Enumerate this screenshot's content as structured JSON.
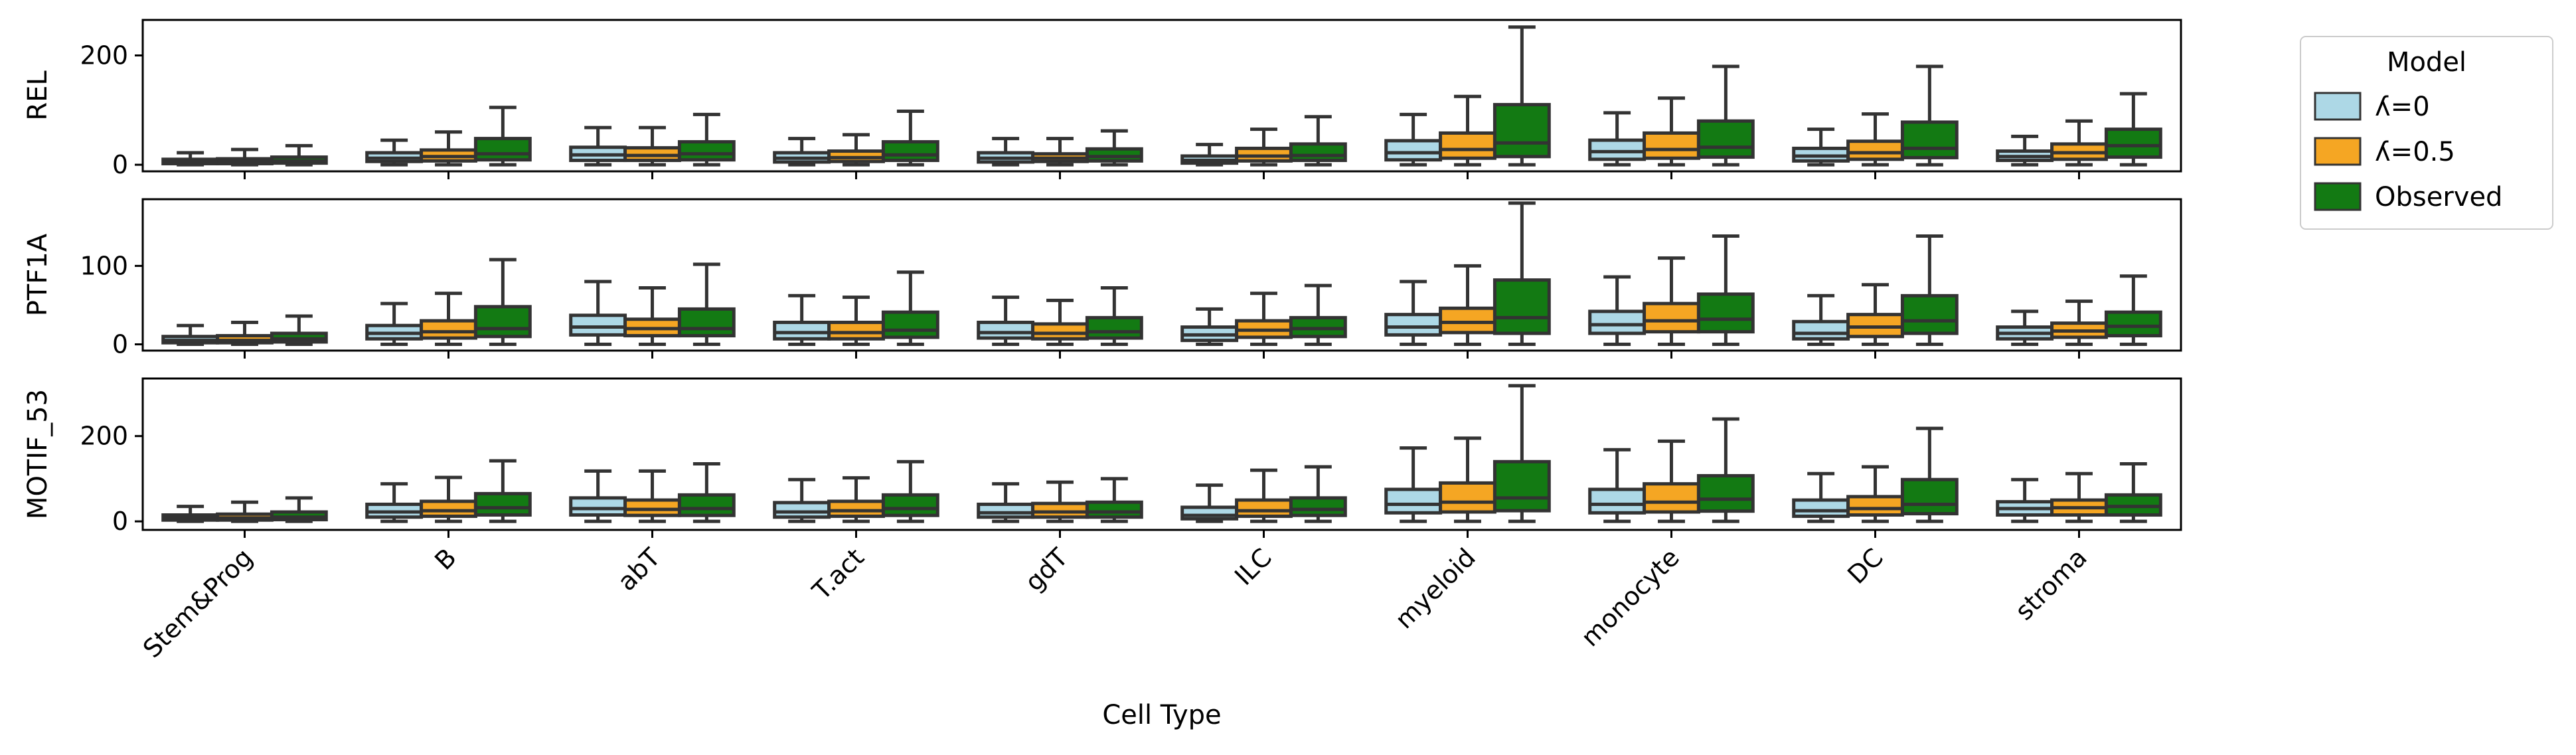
{
  "chart_data": {
    "type": "boxplot",
    "xlabel": "Cell Type",
    "categories": [
      "Stem&Prog",
      "B",
      "abT",
      "T.act",
      "gdT",
      "ILC",
      "myeloid",
      "monocyte",
      "DC",
      "stroma"
    ],
    "legend": {
      "title": "Model",
      "placement": "outside-right",
      "entries": [
        {
          "name": "ʎ=0",
          "color": "#add8e6"
        },
        {
          "name": "ʎ=0.5",
          "color": "#f5a623"
        },
        {
          "name": "Observed",
          "color": "#137a13"
        }
      ]
    },
    "panels": [
      {
        "ylabel": "REL",
        "ylim": [
          -12,
          265
        ],
        "yticks": [
          0,
          200
        ],
        "boxes": [
          [
            [
              0,
              2,
              5,
              10,
              22
            ],
            [
              0,
              2,
              6,
              11,
              28
            ],
            [
              0,
              3,
              7,
              14,
              35
            ]
          ],
          [
            [
              0,
              6,
              12,
              22,
              45
            ],
            [
              0,
              7,
              15,
              27,
              60
            ],
            [
              0,
              9,
              20,
              48,
              105
            ]
          ],
          [
            [
              0,
              8,
              18,
              32,
              68
            ],
            [
              0,
              8,
              17,
              31,
              68
            ],
            [
              0,
              9,
              20,
              42,
              92
            ]
          ],
          [
            [
              0,
              5,
              12,
              22,
              48
            ],
            [
              0,
              6,
              13,
              25,
              55
            ],
            [
              0,
              8,
              18,
              42,
              98
            ]
          ],
          [
            [
              0,
              5,
              12,
              22,
              48
            ],
            [
              0,
              6,
              12,
              20,
              48
            ],
            [
              0,
              7,
              15,
              29,
              62
            ]
          ],
          [
            [
              0,
              3,
              8,
              16,
              37
            ],
            [
              0,
              7,
              16,
              30,
              65
            ],
            [
              0,
              8,
              17,
              38,
              88
            ]
          ],
          [
            [
              0,
              9,
              22,
              44,
              92
            ],
            [
              0,
              12,
              28,
              58,
              125
            ],
            [
              0,
              15,
              40,
              110,
              252
            ]
          ],
          [
            [
              0,
              10,
              24,
              45,
              95
            ],
            [
              0,
              12,
              28,
              58,
              122
            ],
            [
              0,
              14,
              32,
              80,
              180
            ]
          ],
          [
            [
              0,
              7,
              16,
              30,
              65
            ],
            [
              0,
              10,
              22,
              43,
              93
            ],
            [
              0,
              13,
              30,
              78,
              180
            ]
          ],
          [
            [
              0,
              8,
              15,
              25,
              52
            ],
            [
              0,
              10,
              22,
              38,
              80
            ],
            [
              0,
              14,
              35,
              65,
              130
            ]
          ]
        ]
      },
      {
        "ylabel": "PTF1A",
        "ylim": [
          -8,
          185
        ],
        "yticks": [
          0,
          100
        ],
        "boxes": [
          [
            [
              0,
              2,
              5,
              10,
              24
            ],
            [
              0,
              2,
              5,
              11,
              28
            ],
            [
              0,
              3,
              7,
              14,
              36
            ]
          ],
          [
            [
              0,
              7,
              14,
              24,
              52
            ],
            [
              0,
              8,
              16,
              30,
              65
            ],
            [
              0,
              10,
              20,
              48,
              108
            ]
          ],
          [
            [
              0,
              12,
              22,
              37,
              80
            ],
            [
              0,
              11,
              20,
              32,
              72
            ],
            [
              0,
              11,
              20,
              45,
              102
            ]
          ],
          [
            [
              0,
              7,
              15,
              28,
              62
            ],
            [
              0,
              7,
              15,
              28,
              60
            ],
            [
              0,
              9,
              18,
              41,
              92
            ]
          ],
          [
            [
              0,
              8,
              15,
              28,
              60
            ],
            [
              0,
              7,
              14,
              26,
              56
            ],
            [
              0,
              8,
              16,
              34,
              72
            ]
          ],
          [
            [
              0,
              5,
              12,
              22,
              45
            ],
            [
              0,
              9,
              18,
              30,
              65
            ],
            [
              0,
              10,
              20,
              34,
              75
            ]
          ],
          [
            [
              0,
              12,
              22,
              38,
              80
            ],
            [
              0,
              15,
              28,
              46,
              100
            ],
            [
              0,
              14,
              34,
              82,
              180
            ]
          ],
          [
            [
              0,
              14,
              25,
              42,
              86
            ],
            [
              0,
              16,
              30,
              52,
              110
            ],
            [
              0,
              16,
              32,
              64,
              138
            ]
          ],
          [
            [
              0,
              7,
              14,
              29,
              62
            ],
            [
              0,
              10,
              22,
              38,
              76
            ],
            [
              0,
              14,
              30,
              62,
              138
            ]
          ],
          [
            [
              0,
              7,
              14,
              22,
              42
            ],
            [
              0,
              9,
              17,
              27,
              55
            ],
            [
              0,
              11,
              23,
              41,
              87
            ]
          ]
        ]
      },
      {
        "ylabel": "MOTIF_53",
        "ylim": [
          -20,
          335
        ],
        "yticks": [
          0,
          200
        ],
        "boxes": [
          [
            [
              0,
              3,
              8,
              15,
              35
            ],
            [
              0,
              3,
              8,
              17,
              45
            ],
            [
              0,
              4,
              10,
              22,
              55
            ]
          ],
          [
            [
              0,
              10,
              22,
              40,
              88
            ],
            [
              0,
              12,
              25,
              47,
              103
            ],
            [
              0,
              15,
              32,
              65,
              142
            ]
          ],
          [
            [
              0,
              15,
              30,
              55,
              118
            ],
            [
              0,
              14,
              28,
              50,
              118
            ],
            [
              0,
              14,
              30,
              62,
              135
            ]
          ],
          [
            [
              0,
              10,
              22,
              44,
              98
            ],
            [
              0,
              12,
              25,
              47,
              102
            ],
            [
              0,
              14,
              30,
              62,
              140
            ]
          ],
          [
            [
              0,
              10,
              20,
              40,
              88
            ],
            [
              0,
              10,
              22,
              42,
              92
            ],
            [
              0,
              10,
              22,
              45,
              100
            ]
          ],
          [
            [
              0,
              6,
              14,
              33,
              85
            ],
            [
              0,
              12,
              25,
              50,
              120
            ],
            [
              0,
              14,
              28,
              55,
              128
            ]
          ],
          [
            [
              0,
              20,
              40,
              75,
              172
            ],
            [
              0,
              22,
              45,
              90,
              195
            ],
            [
              0,
              25,
              55,
              140,
              318
            ]
          ],
          [
            [
              0,
              20,
              40,
              75,
              168
            ],
            [
              0,
              22,
              45,
              88,
              188
            ],
            [
              0,
              24,
              52,
              107,
              240
            ]
          ],
          [
            [
              0,
              12,
              25,
              50,
              112
            ],
            [
              0,
              15,
              30,
              58,
              128
            ],
            [
              0,
              18,
              40,
              98,
              218
            ]
          ],
          [
            [
              0,
              15,
              30,
              46,
              98
            ],
            [
              0,
              15,
              32,
              50,
              112
            ],
            [
              0,
              15,
              35,
              62,
              135
            ]
          ]
        ]
      }
    ]
  }
}
